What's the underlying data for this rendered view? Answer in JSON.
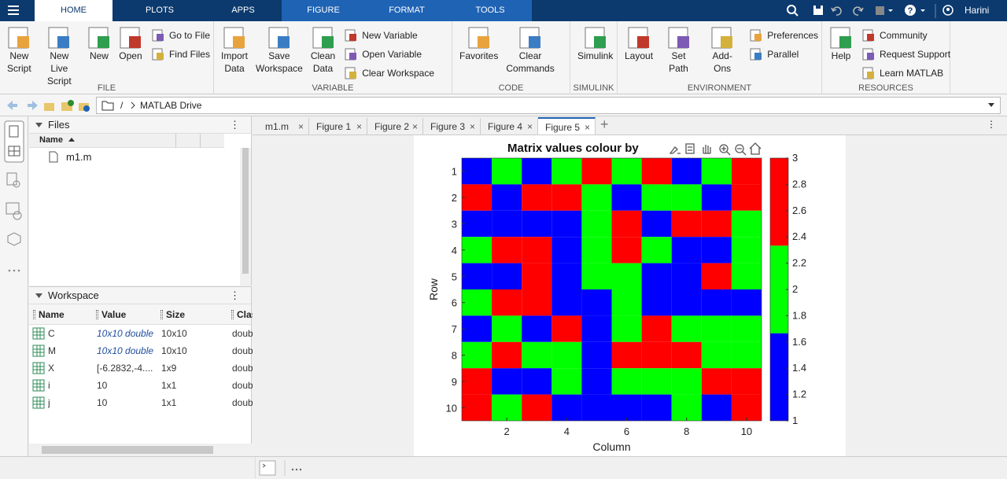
{
  "tabs": [
    "HOME",
    "PLOTS",
    "APPS",
    "FIGURE",
    "FORMAT",
    "TOOLS"
  ],
  "active_tab": 0,
  "contextual_tabs": [
    3,
    4,
    5
  ],
  "user": "Harini",
  "ribbon": {
    "groups": [
      {
        "label": "FILE",
        "width": 272,
        "large": [
          [
            "New",
            "Script"
          ],
          [
            "New",
            "Live Script"
          ],
          [
            "New"
          ],
          [
            "Open"
          ]
        ],
        "small": [
          "Go to File",
          "Find Files"
        ]
      },
      {
        "label": "VARIABLE",
        "width": 303,
        "large": [
          [
            "Import",
            "Data"
          ],
          [
            "Save",
            "Workspace"
          ],
          [
            "Clean",
            "Data"
          ]
        ],
        "small": [
          "New Variable",
          "Open Variable",
          "Clear Workspace"
        ]
      },
      {
        "label": "CODE",
        "width": 150,
        "large": [
          [
            "Favorites"
          ],
          [
            "Clear",
            "Commands"
          ]
        ],
        "small": []
      },
      {
        "label": "SIMULINK",
        "width": 60,
        "large": [
          [
            "Simulink"
          ]
        ],
        "small": []
      },
      {
        "label": "ENVIRONMENT",
        "width": 260,
        "large": [
          [
            "Layout"
          ],
          [
            "Set Path"
          ],
          [
            "Add-Ons"
          ]
        ],
        "small": [
          "Preferences",
          "Parallel"
        ]
      },
      {
        "label": "RESOURCES",
        "width": 163,
        "large": [
          [
            "Help"
          ]
        ],
        "small": [
          "Community",
          "Request Support",
          "Learn MATLAB"
        ]
      }
    ]
  },
  "address": {
    "root": "/",
    "folder": "MATLAB Drive"
  },
  "files": {
    "title": "Files",
    "column": "Name",
    "items": [
      "m1.m"
    ]
  },
  "workspace": {
    "title": "Workspace",
    "columns": [
      "Name",
      "Value",
      "Size",
      "Class"
    ],
    "rows": [
      [
        "C",
        "10x10 double",
        "10x10",
        "double"
      ],
      [
        "M",
        "10x10 double",
        "10x10",
        "double"
      ],
      [
        "X",
        "[-6.2832,-4....",
        "1x9",
        "double"
      ],
      [
        "i",
        "10",
        "1x1",
        "double"
      ],
      [
        "j",
        "10",
        "1x1",
        "double"
      ]
    ]
  },
  "editor_tabs": [
    "m1.m",
    "Figure 1",
    "Figure 2",
    "Figure 3",
    "Figure 4",
    "Figure 5"
  ],
  "active_editor_tab": 5,
  "figure": {
    "type": "heatmap",
    "title": "Matrix values colour by",
    "xlabel": "Column",
    "ylabel": "Row",
    "values": [
      [
        1,
        2,
        1,
        2,
        3,
        2,
        3,
        1,
        2,
        3
      ],
      [
        3,
        1,
        3,
        3,
        2,
        1,
        2,
        2,
        1,
        3
      ],
      [
        1,
        1,
        1,
        1,
        2,
        3,
        1,
        3,
        3,
        2
      ],
      [
        2,
        3,
        3,
        1,
        2,
        3,
        2,
        1,
        1,
        2
      ],
      [
        1,
        1,
        3,
        1,
        2,
        2,
        1,
        1,
        3,
        2
      ],
      [
        2,
        3,
        3,
        1,
        1,
        2,
        1,
        1,
        1,
        1
      ],
      [
        1,
        2,
        1,
        3,
        1,
        2,
        3,
        2,
        2,
        2
      ],
      [
        2,
        3,
        2,
        2,
        1,
        3,
        3,
        3,
        2,
        2
      ],
      [
        3,
        1,
        1,
        2,
        1,
        2,
        2,
        2,
        3,
        3
      ],
      [
        3,
        2,
        3,
        1,
        1,
        1,
        1,
        2,
        1,
        3
      ]
    ],
    "xlim": [
      0.5,
      10.5
    ],
    "ylim": [
      0.5,
      10.5
    ],
    "y_reversed": true,
    "xticks": [
      2,
      4,
      6,
      8,
      10
    ],
    "yticks": [
      1,
      2,
      3,
      4,
      5,
      6,
      7,
      8,
      9,
      10
    ],
    "clim": [
      1,
      3
    ],
    "cticks": [
      1,
      1.2,
      1.4,
      1.6,
      1.8,
      2,
      2.2,
      2.4,
      2.6,
      2.8,
      3
    ],
    "colormap": [
      "#0000ff",
      "#00ff00",
      "#ff0000"
    ]
  }
}
